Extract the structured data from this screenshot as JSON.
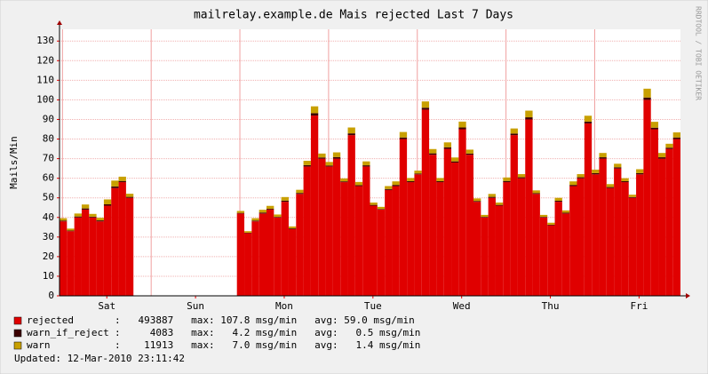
{
  "chart_data": {
    "type": "stacked-bar",
    "title": "mailrelay.example.de Mais rejected Last 7 Days",
    "y_label": "Mails/Min",
    "watermark": "RRDTOOL / TOBI OETIKER",
    "footer": "Updated: 12-Mar-2010 23:11:42",
    "xlim": [
      0,
      168
    ],
    "ylim": [
      0,
      136
    ],
    "yticks": [
      0,
      10,
      20,
      30,
      40,
      50,
      60,
      70,
      80,
      90,
      100,
      110,
      120,
      130
    ],
    "xticks": [
      {
        "value": 12.8,
        "label": "Sat"
      },
      {
        "value": 36.8,
        "label": "Sun"
      },
      {
        "value": 60.8,
        "label": "Mon"
      },
      {
        "value": 84.8,
        "label": "Tue"
      },
      {
        "value": 108.8,
        "label": "Wed"
      },
      {
        "value": 132.8,
        "label": "Thu"
      },
      {
        "value": 156.8,
        "label": "Fri"
      }
    ],
    "xgrid": [
      0.8,
      24.8,
      48.8,
      72.8,
      96.8,
      120.8,
      144.8
    ],
    "grid": true,
    "x": [
      0,
      2,
      4,
      6,
      8,
      10,
      12,
      14,
      16,
      18,
      20,
      22,
      24,
      26,
      28,
      30,
      32,
      34,
      36,
      38,
      40,
      42,
      44,
      46,
      48,
      50,
      52,
      54,
      56,
      58,
      60,
      62,
      64,
      66,
      68,
      70,
      72,
      74,
      76,
      78,
      80,
      82,
      84,
      86,
      88,
      90,
      92,
      94,
      96,
      98,
      100,
      102,
      104,
      106,
      108,
      110,
      112,
      114,
      116,
      118,
      120,
      122,
      124,
      126,
      128,
      130,
      132,
      134,
      136,
      138,
      140,
      142,
      144,
      146,
      148,
      150,
      152,
      154,
      156,
      158,
      160,
      162,
      164,
      166
    ],
    "series": [
      {
        "name": "rejected",
        "color": "#e00000",
        "summary": ":   493887   max: 107.8 msg/min   avg: 59.0 msg/min",
        "values": [
          38,
          33,
          40,
          44,
          40,
          38,
          46,
          55,
          58,
          50,
          null,
          null,
          null,
          null,
          null,
          null,
          null,
          null,
          null,
          null,
          null,
          null,
          null,
          null,
          42,
          32,
          38,
          42,
          44,
          40,
          48,
          34,
          52,
          66,
          92,
          70,
          66,
          70,
          58,
          82,
          56,
          66,
          46,
          44,
          54,
          56,
          80,
          58,
          62,
          95,
          72,
          58,
          75,
          68,
          85,
          72,
          48,
          40,
          50,
          46,
          58,
          82,
          60,
          90,
          52,
          40,
          36,
          48,
          42,
          56,
          60,
          88,
          62,
          70,
          55,
          65,
          58,
          50,
          62,
          100,
          85,
          70,
          75,
          80
        ]
      },
      {
        "name": "warn_if_reject",
        "color": "#3c0000",
        "summary": ":     4083   max:   4.2 msg/min   avg:   0.5 msg/min",
        "values": [
          0.4,
          0.3,
          0.5,
          0.6,
          0.4,
          0.5,
          0.7,
          0.8,
          0.6,
          0.5,
          null,
          null,
          null,
          null,
          null,
          null,
          null,
          null,
          null,
          null,
          null,
          null,
          null,
          null,
          0.3,
          0.2,
          0.4,
          0.5,
          0.4,
          0.3,
          0.6,
          0.4,
          0.5,
          0.7,
          1.2,
          0.6,
          0.5,
          0.8,
          0.4,
          0.9,
          0.5,
          0.6,
          0.4,
          0.3,
          0.5,
          0.6,
          0.8,
          0.5,
          0.4,
          1.0,
          0.7,
          0.5,
          0.8,
          0.6,
          0.9,
          0.6,
          0.4,
          0.3,
          0.5,
          0.4,
          0.6,
          0.8,
          0.5,
          1.1,
          0.4,
          0.3,
          0.3,
          0.5,
          0.4,
          0.6,
          0.5,
          0.9,
          0.6,
          0.7,
          0.5,
          0.6,
          0.5,
          0.4,
          0.6,
          1.2,
          0.8,
          0.7,
          0.6,
          0.8
        ]
      },
      {
        "name": "warn",
        "color": "#c8a000",
        "summary": ":    11913   max:   7.0 msg/min   avg:   1.4 msg/min",
        "values": [
          1.2,
          1.0,
          1.5,
          2.0,
          1.4,
          1.3,
          2.5,
          3.0,
          2.2,
          1.6,
          null,
          null,
          null,
          null,
          null,
          null,
          null,
          null,
          null,
          null,
          null,
          null,
          null,
          null,
          1.0,
          0.8,
          1.2,
          1.4,
          1.5,
          1.2,
          1.8,
          1.0,
          1.6,
          2.2,
          3.5,
          2.0,
          1.8,
          2.4,
          1.5,
          3.0,
          1.6,
          2.0,
          1.2,
          1.1,
          1.5,
          1.8,
          2.8,
          1.6,
          1.5,
          3.2,
          2.2,
          1.6,
          2.5,
          2.0,
          3.0,
          2.0,
          1.3,
          1.0,
          1.5,
          1.2,
          1.8,
          2.6,
          1.6,
          3.4,
          1.4,
          1.0,
          1.0,
          1.5,
          1.2,
          1.8,
          1.6,
          3.0,
          1.8,
          2.2,
          1.5,
          1.8,
          1.5,
          1.2,
          2.0,
          4.5,
          3.0,
          2.2,
          2.0,
          2.6
        ]
      }
    ]
  }
}
